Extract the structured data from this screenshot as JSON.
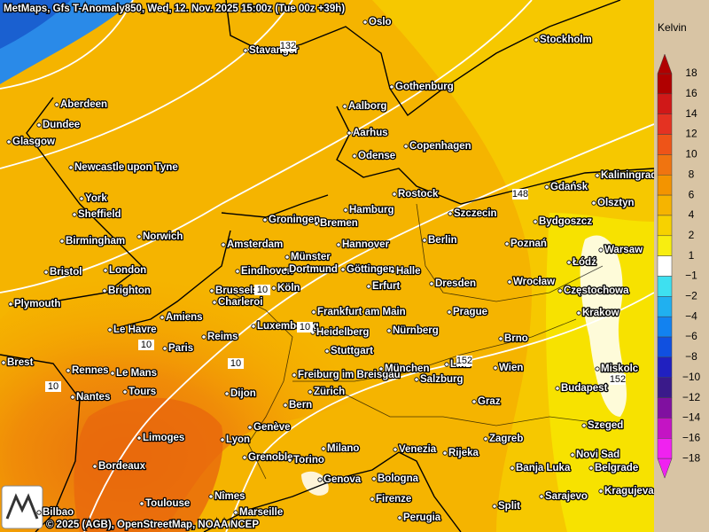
{
  "header": {
    "title": "MetMaps, Gfs T-Anomaly850, Wed, 12. Nov. 2025 15:00z (Tue 00z +39h)"
  },
  "footer": {
    "attribution": "© 2025 (AGB), OpenStreetMap, NOAA NCEP"
  },
  "legend": {
    "title": "Kelvin",
    "labels": [
      "18",
      "16",
      "14",
      "12",
      "10",
      "8",
      "6",
      "4",
      "2",
      "1",
      "−1",
      "−2",
      "−4",
      "−6",
      "−8",
      "−10",
      "−12",
      "−14",
      "−16",
      "−18"
    ],
    "colors": [
      "#b00000",
      "#d01818",
      "#e43222",
      "#ee5418",
      "#f07410",
      "#f39400",
      "#f6b400",
      "#f7d200",
      "#f8ee10",
      "#ffffff",
      "#3ee0f0",
      "#20b0f0",
      "#1282f0",
      "#1050e0",
      "#2020c0",
      "#3a1a8a",
      "#8010a0",
      "#c414c4",
      "#f022f0"
    ]
  },
  "cities": [
    "Oslo",
    "Stockholm",
    "Stavanger",
    "Aberdeen",
    "Gothenburg",
    "Aalborg",
    "Dundee",
    "Aarhus",
    "Glasgow",
    "Copenhagen",
    "Odense",
    "Newcastle upon Tyne",
    "Kaliningrad",
    "Gdańsk",
    "Rostock",
    "York",
    "Olsztyn",
    "Sheffield",
    "Szczecin",
    "Groningen",
    "Bremen",
    "Hamburg",
    "Bydgoszcz",
    "Birmingham",
    "Norwich",
    "Amsterdam",
    "Hannover",
    "Berlin",
    "Poznań",
    "Warsaw",
    "Münster",
    "Łódź",
    "Bristol",
    "London",
    "Eindhoven",
    "Dortmund",
    "Göttingen",
    "Halle",
    "Brighton",
    "Brussels",
    "Köln",
    "Erfurt",
    "Dresden",
    "Wrocław",
    "Częstochowa",
    "Plymouth",
    "Charleroi",
    "Frankfurt am Main",
    "Prague",
    "Krakow",
    "Amiens",
    "Le Havre",
    "Luxembourg",
    "Heidelberg",
    "Nürnberg",
    "Reims",
    "Paris",
    "Brno",
    "Brest",
    "Stuttgart",
    "Rennes",
    "Le Mans",
    "Freiburg im Breisgau",
    "München",
    "Linz",
    "Wien",
    "Miskolc",
    "Tours",
    "Nantes",
    "Salzburg",
    "Zürich",
    "Dijon",
    "Budapest",
    "Graz",
    "Bern",
    "Szeged",
    "Genève",
    "Limoges",
    "Lyon",
    "Zagreb",
    "Milano",
    "Venezia",
    "Rijeka",
    "Bordeaux",
    "Grenoble",
    "Torino",
    "Novi Sad",
    "Banja Luka",
    "Belgrade",
    "Genova",
    "Bologna",
    "Kragujevac",
    "Sarajevo",
    "Nîmes",
    "Firenze",
    "Toulouse",
    "Split",
    "Marseille",
    "Perugia",
    "Bilbao"
  ],
  "contour_labels": [
    "132",
    "148",
    "10",
    "10",
    "10",
    "10",
    "10",
    "152",
    "152"
  ]
}
